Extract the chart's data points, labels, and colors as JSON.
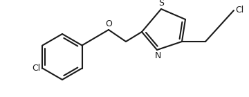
{
  "bg_color": "#ffffff",
  "line_color": "#1a1a1a",
  "line_width": 1.5,
  "font_size": 9,
  "figsize": [
    3.6,
    1.4
  ],
  "dpi": 100,
  "S_label": "S",
  "N_label": "N",
  "O_label": "O",
  "Cl1_label": "Cl",
  "Cl2_label": "Cl",
  "xlim": [
    0,
    360
  ],
  "ylim": [
    0,
    140
  ]
}
